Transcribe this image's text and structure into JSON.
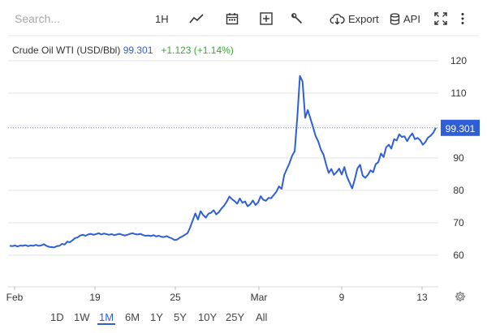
{
  "toolbar": {
    "search_placeholder": "Search...",
    "interval_label": "1H",
    "export_label": "Export",
    "api_label": "API"
  },
  "legend": {
    "symbol": "Crude Oil WTI (USD/Bbl)",
    "price": "99.301",
    "change": "+1.123 (+1.14%)"
  },
  "colors": {
    "line": "#2f5fd6",
    "up": "#38a838",
    "price_tag_bg": "#2f5fd6",
    "gridline": "#e3e3e3"
  },
  "range": {
    "buttons": [
      "1D",
      "1W",
      "1M",
      "6M",
      "1Y",
      "5Y",
      "10Y",
      "25Y",
      "All"
    ],
    "active": "1M"
  },
  "chart_data": {
    "type": "line",
    "title": "Crude Oil WTI (USD/Bbl)",
    "xlabel": "",
    "ylabel": "",
    "ylim": [
      53,
      125
    ],
    "yticks": [
      60,
      70,
      80,
      90,
      100,
      110,
      120
    ],
    "xtick_labels": [
      "Feb",
      "19",
      "25",
      "Mar",
      "9",
      "13"
    ],
    "last_value_label": "99.301",
    "grid": "horizontal",
    "series": [
      {
        "values": [
          62.9,
          62.8,
          63.0,
          62.7,
          63.0,
          62.9,
          63.1,
          62.8,
          63.0,
          62.9,
          63.2,
          62.9,
          63.0,
          63.4,
          62.9,
          62.6,
          62.5,
          62.4,
          62.8,
          62.9,
          63.5,
          63.3,
          64.2,
          64.0,
          64.6,
          65.3,
          65.5,
          66.1,
          66.3,
          66.0,
          66.4,
          66.6,
          66.3,
          66.5,
          66.8,
          66.4,
          66.7,
          66.5,
          66.3,
          66.5,
          66.2,
          66.4,
          66.6,
          66.3,
          66.1,
          66.3,
          66.6,
          66.8,
          66.5,
          66.4,
          66.6,
          66.2,
          66.0,
          66.1,
          65.9,
          66.2,
          65.8,
          66.0,
          65.7,
          65.6,
          65.9,
          65.5,
          65.2,
          64.7,
          64.8,
          65.4,
          65.8,
          66.3,
          66.8,
          68.5,
          70.8,
          72.9,
          71.0,
          73.6,
          72.4,
          71.6,
          72.8,
          73.1,
          73.9,
          72.6,
          73.3,
          74.4,
          75.3,
          76.5,
          78.1,
          77.3,
          76.7,
          75.9,
          77.5,
          76.2,
          76.6,
          75.1,
          75.7,
          76.9,
          75.5,
          76.3,
          78.2,
          77.1,
          76.8,
          77.7,
          77.6,
          78.6,
          79.6,
          81.2,
          80.5,
          84.8,
          86.6,
          88.4,
          90.7,
          92.1,
          102.6,
          115.3,
          113.6,
          102.4,
          104.8,
          102.2,
          99.6,
          96.8,
          95.1,
          92.6,
          91.1,
          88.1,
          85.4,
          86.6,
          84.8,
          85.6,
          86.7,
          84.9,
          87.2,
          84.2,
          82.4,
          80.6,
          83.5,
          86.8,
          87.9,
          84.6,
          83.9,
          84.8,
          86.2,
          85.6,
          88.1,
          88.7,
          91.4,
          90.3,
          93.3,
          94.1,
          92.9,
          95.8,
          95.4,
          97.3,
          96.5,
          96.7,
          95.2,
          96.6,
          97.6,
          95.8,
          96.2,
          95.5,
          94.1,
          94.9,
          96.3,
          96.9,
          97.8,
          99.3
        ]
      }
    ]
  }
}
